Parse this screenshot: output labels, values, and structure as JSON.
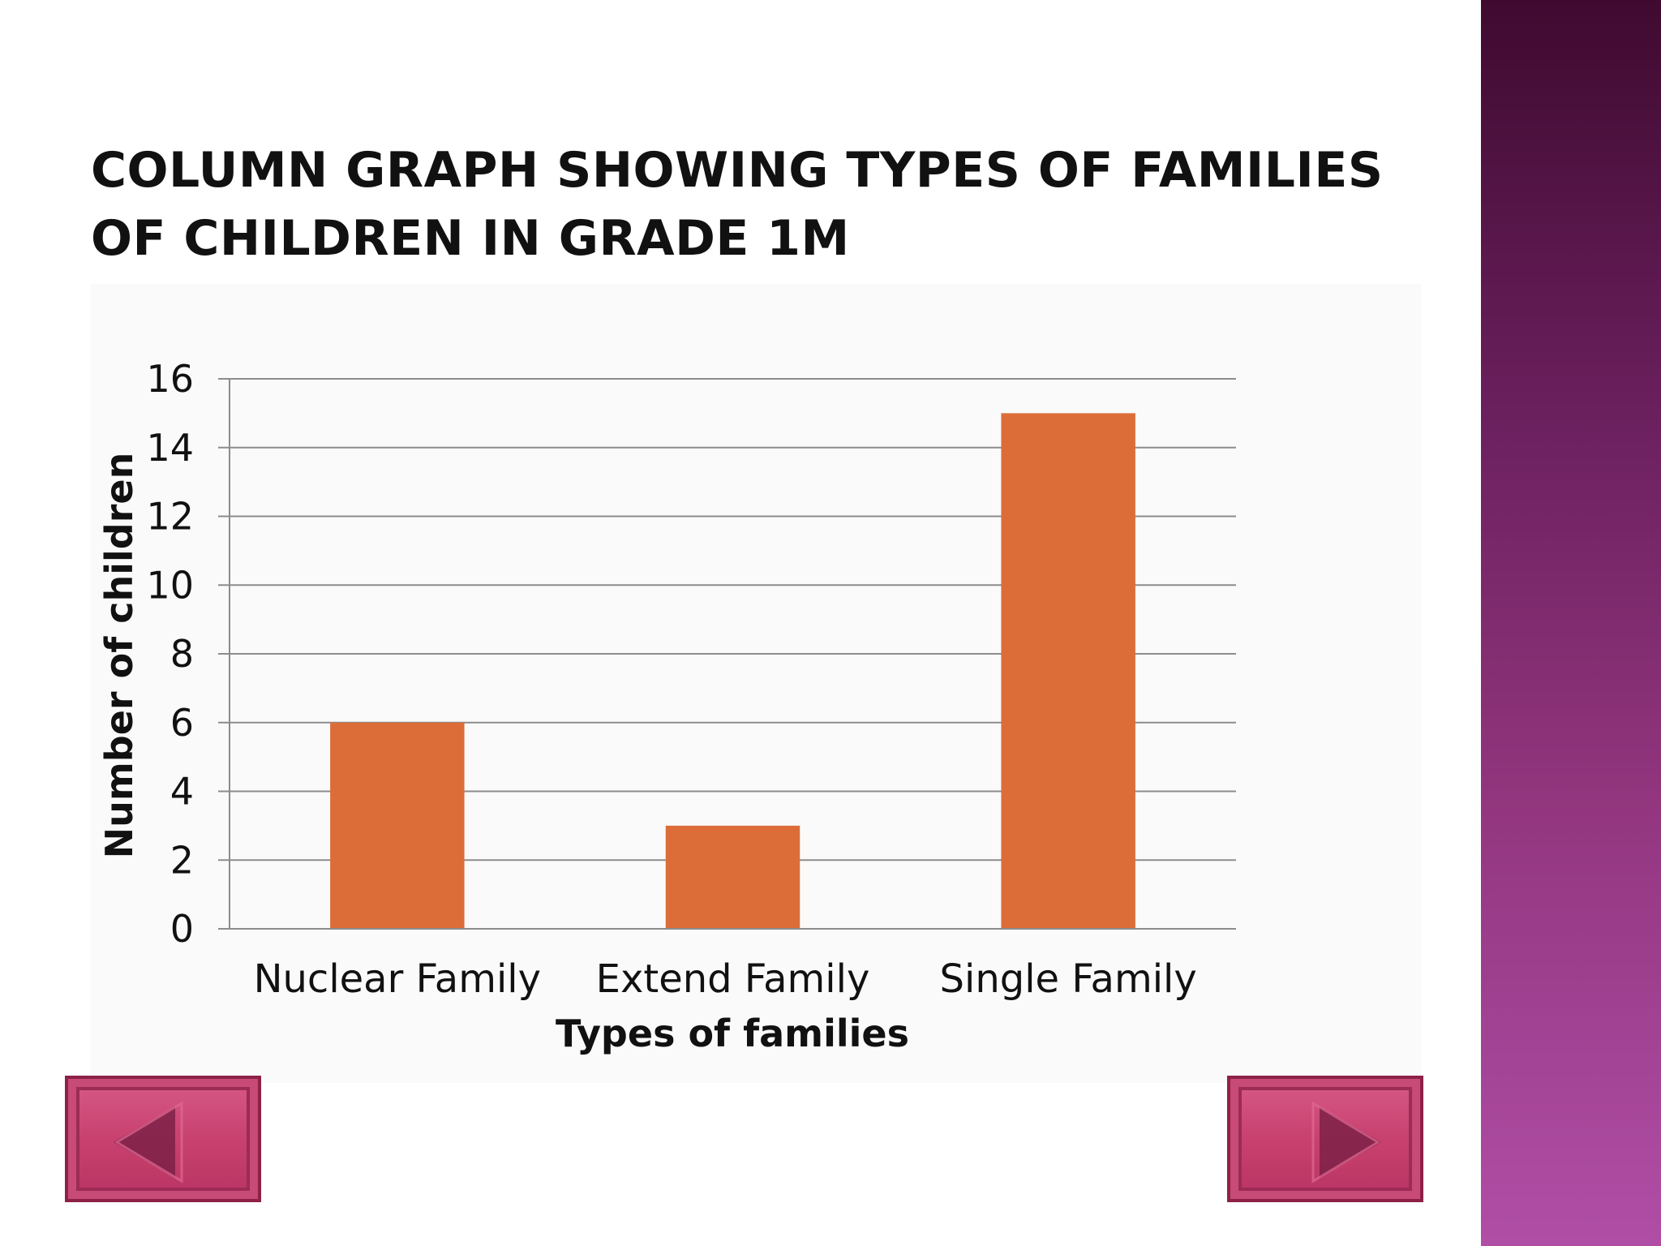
{
  "slide": {
    "title": "COLUMN GRAPH SHOWING TYPES OF FAMILIES  OF CHILDREN IN GRADE 1M"
  },
  "nav": {
    "prev_icon": "triangle-left-icon",
    "next_icon": "triangle-right-icon",
    "button_color": "#c8416f"
  },
  "chart_data": {
    "type": "bar",
    "categories": [
      "Nuclear Family",
      "Extend Family",
      "Single Family"
    ],
    "values": [
      6,
      3,
      15
    ],
    "xlabel": "Types of families",
    "ylabel": "Number of children",
    "ylim": [
      0,
      16
    ],
    "yticks": [
      0,
      2,
      4,
      6,
      8,
      10,
      12,
      14,
      16
    ],
    "ytick_labels": [
      "0",
      "2",
      "4",
      "6",
      "8",
      "10",
      "12",
      "14",
      "16"
    ],
    "grid": true,
    "legend": "none",
    "bar_color": "#dd6d38"
  }
}
